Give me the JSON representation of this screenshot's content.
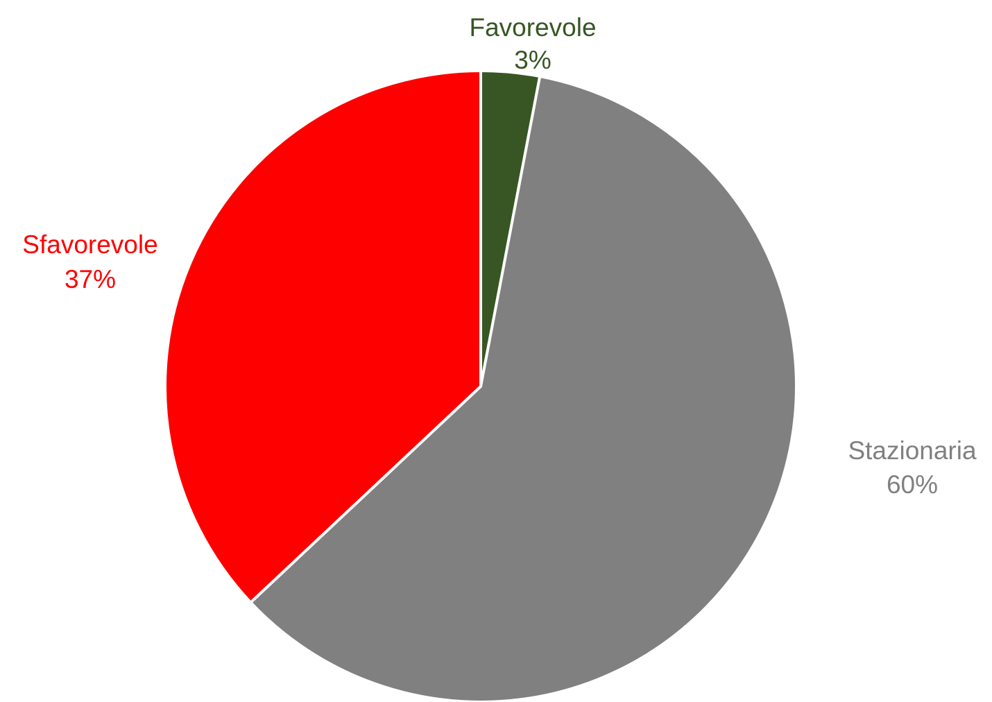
{
  "chart_data": {
    "type": "pie",
    "title": "",
    "start_angle_deg": 0,
    "direction": "clockwise",
    "legend": "none",
    "slices": [
      {
        "name": "Favorevole",
        "value": 3,
        "label": "3%",
        "color": "#375623"
      },
      {
        "name": "Stazionaria",
        "value": 60,
        "label": "60%",
        "color": "#808080"
      },
      {
        "name": "Sfavorevole",
        "value": 37,
        "label": "37%",
        "color": "#ff0000"
      }
    ]
  }
}
